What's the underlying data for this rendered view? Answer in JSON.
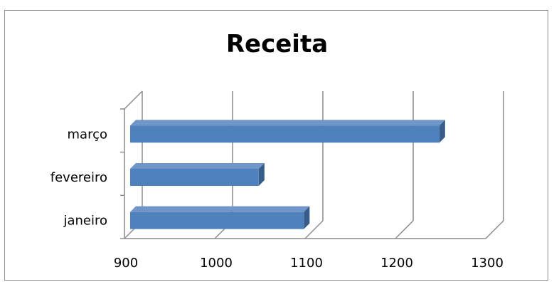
{
  "chart_data": {
    "type": "bar",
    "orientation": "horizontal",
    "title": "Receita",
    "categories": [
      "janeiro",
      "fevereiro",
      "março"
    ],
    "values": [
      1105,
      1055,
      1255
    ],
    "xlim": [
      900,
      1300
    ],
    "xticks": [
      900,
      1000,
      1100,
      1200,
      1300
    ],
    "xlabel": "",
    "ylabel": "",
    "grid": true,
    "legend": "none",
    "bar_color": "#4f81bd",
    "bar_top_color": "#6f95c9",
    "bar_side_color": "#385d8a",
    "grid_color": "#8c8c8c"
  }
}
